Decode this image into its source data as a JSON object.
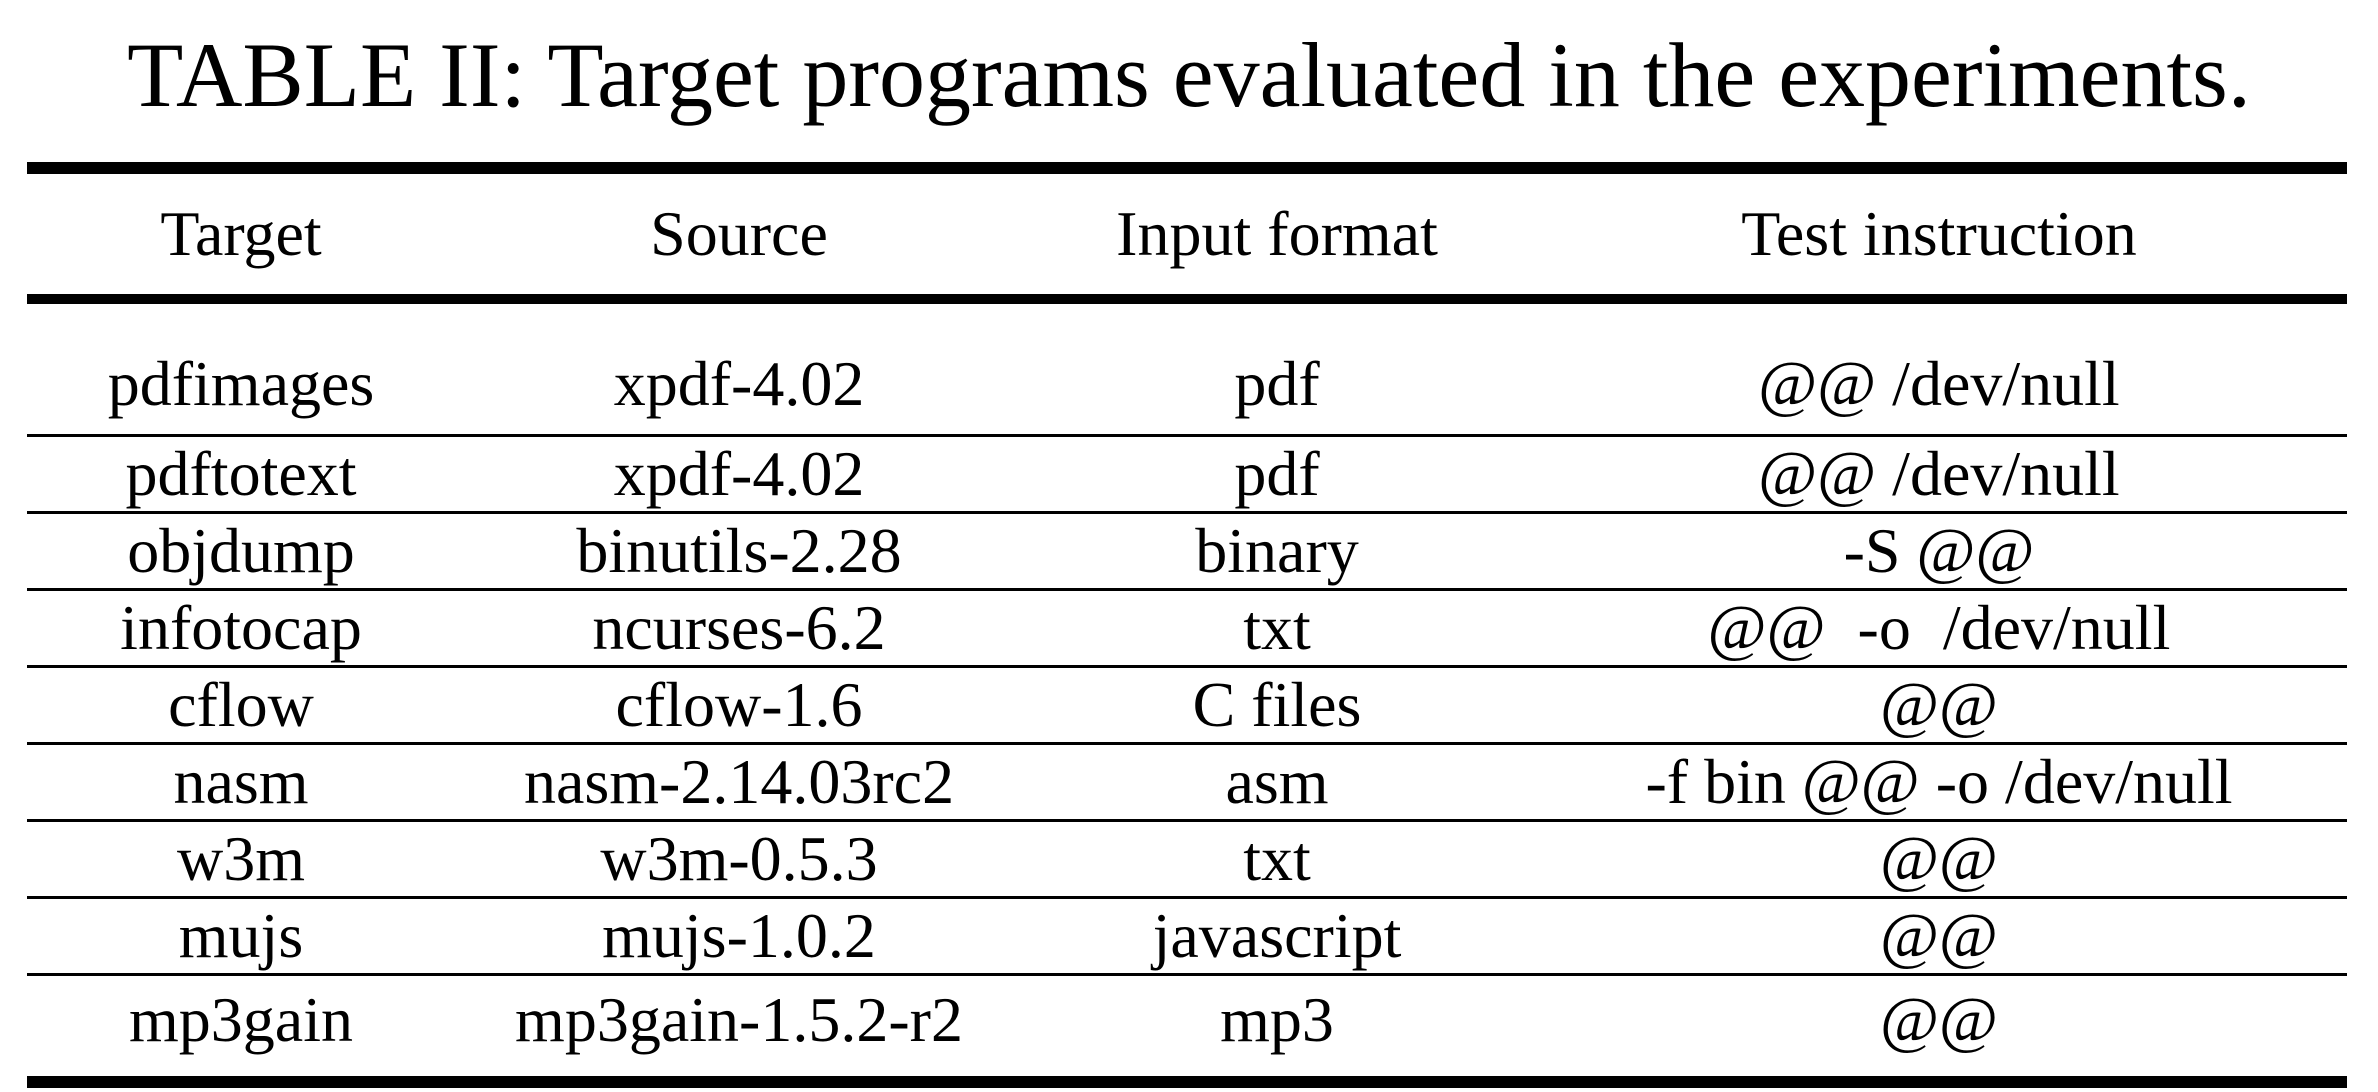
{
  "caption": "TABLE II: Target programs evaluated in the experiments.",
  "table": {
    "headers": [
      "Target",
      "Source",
      "Input format",
      "Test instruction"
    ],
    "rows": [
      [
        "pdfimages",
        "xpdf-4.02",
        "pdf",
        "@@ /dev/null"
      ],
      [
        "pdftotext",
        "xpdf-4.02",
        "pdf",
        "@@ /dev/null"
      ],
      [
        "objdump",
        "binutils-2.28",
        "binary",
        "-S @@"
      ],
      [
        "infotocap",
        "ncurses-6.2",
        "txt",
        "@@  -o  /dev/null"
      ],
      [
        "cflow",
        "cflow-1.6",
        "C files",
        "@@"
      ],
      [
        "nasm",
        "nasm-2.14.03rc2",
        "asm",
        "-f bin @@ -o /dev/null"
      ],
      [
        "w3m",
        "w3m-0.5.3",
        "txt",
        "@@"
      ],
      [
        "mujs",
        "mujs-1.0.2",
        "javascript",
        "@@"
      ],
      [
        "mp3gain",
        "mp3gain-1.5.2-r2",
        "mp3",
        "@@"
      ]
    ]
  }
}
